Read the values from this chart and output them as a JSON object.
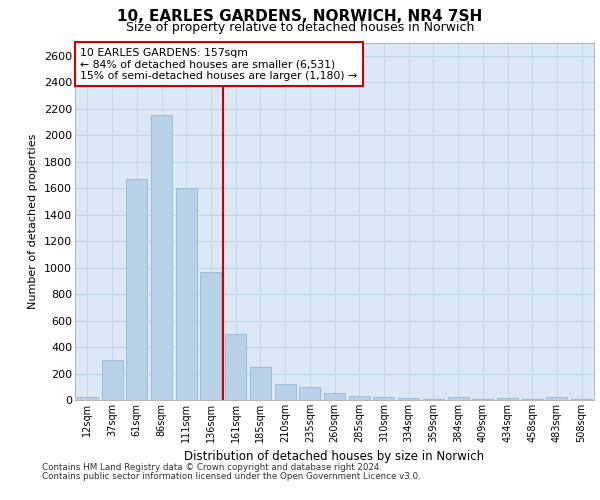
{
  "title_line1": "10, EARLES GARDENS, NORWICH, NR4 7SH",
  "title_line2": "Size of property relative to detached houses in Norwich",
  "xlabel": "Distribution of detached houses by size in Norwich",
  "ylabel": "Number of detached properties",
  "categories": [
    "12sqm",
    "37sqm",
    "61sqm",
    "86sqm",
    "111sqm",
    "136sqm",
    "161sqm",
    "185sqm",
    "210sqm",
    "235sqm",
    "260sqm",
    "285sqm",
    "310sqm",
    "334sqm",
    "359sqm",
    "384sqm",
    "409sqm",
    "434sqm",
    "458sqm",
    "483sqm",
    "508sqm"
  ],
  "values": [
    20,
    300,
    1670,
    2150,
    1600,
    970,
    500,
    248,
    120,
    100,
    50,
    30,
    20,
    15,
    10,
    20,
    10,
    15,
    5,
    20,
    5
  ],
  "bar_color": "#b8d0e8",
  "bar_edge_color": "#8ab0d0",
  "vline_color": "#cc0000",
  "vline_idx": 6,
  "annotation_line1": "10 EARLES GARDENS: 157sqm",
  "annotation_line2": "← 84% of detached houses are smaller (6,531)",
  "annotation_line3": "15% of semi-detached houses are larger (1,180) →",
  "annotation_box_color": "#ffffff",
  "annotation_box_edge_color": "#cc0000",
  "ylim_max": 2700,
  "yticks": [
    0,
    200,
    400,
    600,
    800,
    1000,
    1200,
    1400,
    1600,
    1800,
    2000,
    2200,
    2400,
    2600
  ],
  "grid_color": "#c0d4e8",
  "bg_color": "#dce8f5",
  "footnote1": "Contains HM Land Registry data © Crown copyright and database right 2024.",
  "footnote2": "Contains public sector information licensed under the Open Government Licence v3.0."
}
